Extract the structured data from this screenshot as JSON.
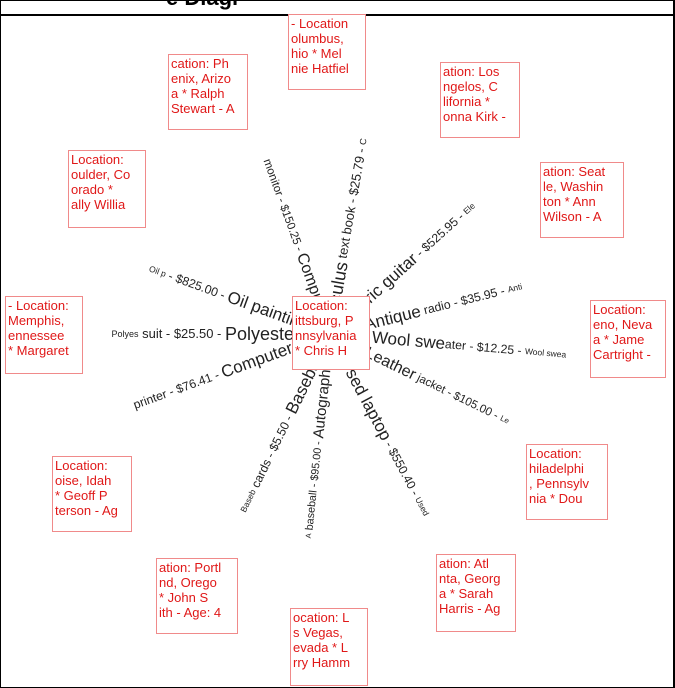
{
  "title_fragment": "e Diagr",
  "colors": {
    "location_text": "#e01818",
    "location_border": "#f08a8a",
    "spoke_text": "#222222"
  },
  "center": {
    "lines": [
      "Location:",
      "ittsburg, P",
      "nnsylvania",
      "* Chris H"
    ]
  },
  "spokes": [
    {
      "id": "calculus",
      "name": "alculus",
      "rest": " text book - $25.79 - ",
      "tail": "C"
    },
    {
      "id": "guitar",
      "name": "ectric guitar",
      "rest": " - $525.95 - ",
      "tail": "Ele"
    },
    {
      "id": "radio",
      "name": "Antique",
      "rest": " radio - $35.95 - ",
      "tail": "Anti"
    },
    {
      "id": "sweater",
      "name": "Wool swe",
      "rest": "ater - $12.25 - ",
      "tail": "Wool swea"
    },
    {
      "id": "jacket",
      "name": "Leather",
      "rest": " jacket - $105.00 - ",
      "tail": "Le"
    },
    {
      "id": "laptop",
      "name": "Used laptop",
      "rest": " - $550.40 - ",
      "tail": "Used"
    },
    {
      "id": "baseball",
      "name": "Autographed",
      "rest": " baseball - $95.00 - ",
      "tail": "A"
    },
    {
      "id": "cards",
      "name": "Baseball",
      "rest": " cards - $5.50 - ",
      "tail": "Baseb"
    },
    {
      "id": "printer",
      "name": "Computer",
      "rest": " printer - $76.41 - ",
      "tail": ""
    },
    {
      "id": "polyester",
      "name": "Polyester",
      "rest": " suit - $25.50 - ",
      "tail": "Polyes"
    },
    {
      "id": "painting",
      "name": "Oil painting",
      "rest": " - $825.00 - ",
      "tail": "Oil p"
    },
    {
      "id": "monitor",
      "name": "Computer",
      "rest": " monitor - $150.25 - ",
      "tail": ""
    }
  ],
  "locations": [
    {
      "id": "columbus",
      "lines": [
        "- Location",
        "olumbus,",
        "hio  * Mel",
        "nie Hatfiel"
      ]
    },
    {
      "id": "phoenix",
      "lines": [
        "cation: Ph",
        "enix, Arizo",
        "a  * Ralph",
        "Stewart - A"
      ]
    },
    {
      "id": "losangeles",
      "lines": [
        "ation: Los",
        "ngelos, C",
        "lifornia  *",
        "onna Kirk -"
      ]
    },
    {
      "id": "boulder",
      "lines": [
        "Location:",
        "oulder, Co",
        "orado  *",
        "ally Willia"
      ]
    },
    {
      "id": "seattle",
      "lines": [
        "ation: Seat",
        "le, Washin",
        "ton  * Ann",
        "Wilson - A"
      ]
    },
    {
      "id": "memphis",
      "lines": [
        "- Location:",
        "Memphis,",
        "ennessee",
        "* Margaret"
      ]
    },
    {
      "id": "reno",
      "lines": [
        "Location:",
        "eno, Neva",
        "a  * Jame",
        "Cartright -"
      ]
    },
    {
      "id": "boise",
      "lines": [
        "Location:",
        "oise, Idah",
        "* Geoff P",
        "terson - Ag"
      ]
    },
    {
      "id": "philadelphia",
      "lines": [
        "Location:",
        "hiladelphi",
        ", Pennsylv",
        "nia  * Dou"
      ]
    },
    {
      "id": "portland",
      "lines": [
        "ation: Portl",
        "nd, Orego",
        "* John S",
        "ith - Age: 4"
      ]
    },
    {
      "id": "atlanta",
      "lines": [
        "ation: Atl",
        "nta, Georg",
        "a  * Sarah",
        "Harris - Ag"
      ]
    },
    {
      "id": "lasvegas",
      "lines": [
        "ocation: L",
        "s Vegas,",
        "evada  * L",
        "rry Hamm"
      ]
    }
  ]
}
